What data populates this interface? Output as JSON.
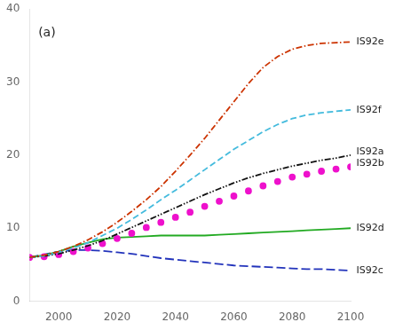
{
  "chart_data": {
    "type": "line",
    "x": [
      1990,
      1995,
      2000,
      2005,
      2010,
      2015,
      2020,
      2025,
      2030,
      2035,
      2040,
      2045,
      2050,
      2055,
      2060,
      2065,
      2070,
      2075,
      2080,
      2085,
      2090,
      2095,
      2100
    ],
    "series": [
      {
        "name": "IS92e",
        "color": "#cc3300",
        "line_style": "dashdot",
        "values": [
          6.0,
          6.3,
          6.8,
          7.5,
          8.4,
          9.5,
          10.8,
          12.3,
          13.9,
          15.7,
          17.8,
          20.0,
          22.3,
          24.8,
          27.3,
          29.8,
          32.0,
          33.5,
          34.5,
          35.0,
          35.3,
          35.4,
          35.5
        ]
      },
      {
        "name": "IS92f",
        "color": "#44bbdd",
        "line_style": "dashed",
        "values": [
          6.0,
          6.2,
          6.7,
          7.3,
          8.0,
          9.0,
          10.0,
          11.2,
          12.5,
          13.9,
          15.2,
          16.6,
          18.0,
          19.4,
          20.8,
          22.0,
          23.2,
          24.2,
          25.0,
          25.5,
          25.8,
          26.0,
          26.2
        ]
      },
      {
        "name": "IS92a",
        "color": "#111111",
        "line_style": "dashdotdot",
        "values": [
          6.0,
          6.2,
          6.5,
          7.0,
          7.6,
          8.3,
          9.2,
          10.1,
          11.0,
          11.9,
          12.8,
          13.7,
          14.6,
          15.4,
          16.2,
          16.9,
          17.5,
          18.0,
          18.5,
          18.9,
          19.3,
          19.6,
          20.0
        ]
      },
      {
        "name": "IS92b",
        "color": "#ee11cc",
        "line_style": "none",
        "marker": "circle",
        "values": [
          6.0,
          6.1,
          6.4,
          6.8,
          7.3,
          7.9,
          8.6,
          9.3,
          10.1,
          10.8,
          11.5,
          12.2,
          13.0,
          13.7,
          14.4,
          15.1,
          15.8,
          16.4,
          17.0,
          17.4,
          17.8,
          18.1,
          18.4
        ]
      },
      {
        "name": "IS92d",
        "color": "#22aa22",
        "line_style": "solid",
        "values": [
          6.0,
          6.3,
          6.8,
          7.5,
          8.0,
          8.5,
          8.7,
          8.8,
          8.9,
          9.0,
          9.0,
          9.0,
          9.0,
          9.1,
          9.2,
          9.3,
          9.4,
          9.5,
          9.6,
          9.7,
          9.8,
          9.9,
          10.0
        ]
      },
      {
        "name": "IS92c",
        "color": "#2233bb",
        "line_style": "longdash",
        "values": [
          6.0,
          6.4,
          6.8,
          7.0,
          7.0,
          6.9,
          6.7,
          6.5,
          6.2,
          5.9,
          5.7,
          5.5,
          5.3,
          5.1,
          4.9,
          4.8,
          4.7,
          4.6,
          4.5,
          4.4,
          4.4,
          4.3,
          4.2
        ]
      }
    ],
    "xlim": [
      1990,
      2100
    ],
    "xticks": [
      2000,
      2020,
      2040,
      2060,
      2080,
      2100
    ],
    "ylim": [
      0,
      40
    ],
    "yticks": [
      0,
      10,
      20,
      30,
      40
    ],
    "grid": false,
    "annotations": [
      {
        "text": "(a)",
        "x": 1993,
        "y": 37.5
      },
      {
        "text": "IS92e",
        "x": 2102,
        "y": 35.5
      },
      {
        "text": "IS92f",
        "x": 2102,
        "y": 26.2
      },
      {
        "text": "IS92a",
        "x": 2102,
        "y": 20.5
      },
      {
        "text": "IS92b",
        "x": 2102,
        "y": 18.9
      },
      {
        "text": "IS92d",
        "x": 2102,
        "y": 10.0
      },
      {
        "text": "IS92c",
        "x": 2102,
        "y": 4.2
      }
    ]
  }
}
